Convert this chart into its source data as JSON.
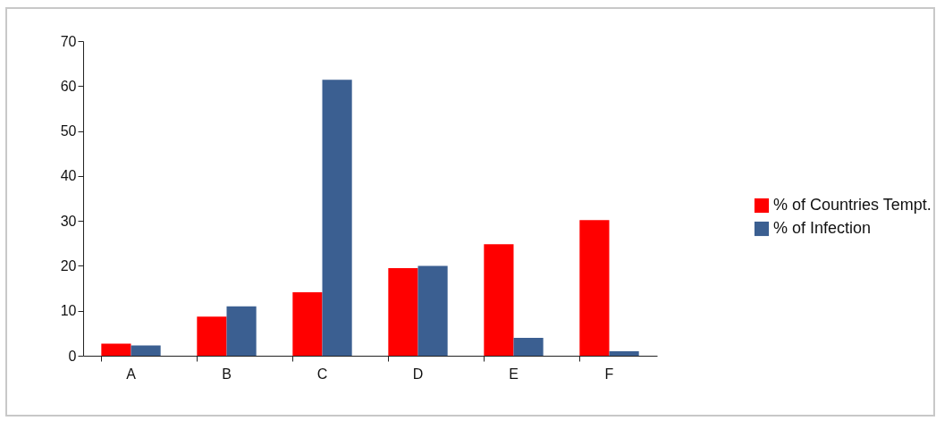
{
  "chart_data": {
    "type": "bar",
    "categories": [
      "A",
      "B",
      "C",
      "D",
      "E",
      "F"
    ],
    "series": [
      {
        "name": "% of Countries Tempt.",
        "color": "#ff0000",
        "values": [
          2.7,
          8.7,
          14.1,
          19.5,
          24.8,
          30.2
        ]
      },
      {
        "name": "% of Infection",
        "color": "#3b5f91",
        "values": [
          2.3,
          11,
          61.4,
          20,
          4,
          1
        ]
      }
    ],
    "ylim": [
      0,
      70
    ],
    "yticks": [
      0,
      10,
      20,
      30,
      40,
      50,
      60,
      70
    ],
    "grid": false,
    "legend": "right"
  }
}
